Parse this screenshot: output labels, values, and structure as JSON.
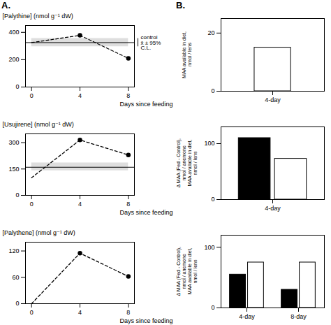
{
  "chart_data": [
    {
      "type": "line",
      "title": "A.",
      "x": [
        0,
        4,
        8
      ],
      "xlim": [
        -0.5,
        8.5
      ],
      "xticks": [
        0,
        4,
        8
      ],
      "xlabel": "Days since feeding",
      "ylabel": "[Palythine] (nmol g⁻¹ dW)",
      "ylim": [
        0,
        450
      ],
      "yticks": [
        0,
        200,
        400
      ],
      "series": [
        {
          "type": "band",
          "color": "#c8c8c8",
          "lower": 295,
          "upper": 355
        },
        {
          "type": "hline",
          "color": "#000000",
          "value": 325
        },
        {
          "type": "line",
          "line_style": "dashed",
          "color": "#000000",
          "values": [
            325,
            378,
            210
          ]
        },
        {
          "type": "scatter",
          "marker": "o",
          "color": "#000000",
          "values": [
            null,
            378,
            210
          ]
        }
      ],
      "annotations": [
        {
          "text": "control\nx̄ ± 95%\nC.L."
        }
      ]
    },
    {
      "type": "line",
      "x": [
        0,
        4,
        8
      ],
      "xlim": [
        -0.5,
        8.5
      ],
      "xticks": [
        0,
        4,
        8
      ],
      "xlabel": "Days since feeding",
      "ylabel": "[Usujirene] (nmol g⁻¹ dW)",
      "ylim": [
        0,
        350
      ],
      "yticks": [
        0,
        150,
        300
      ],
      "series": [
        {
          "type": "band",
          "color": "#c8c8c8",
          "lower": 140,
          "upper": 185
        },
        {
          "type": "hline",
          "color": "#000000",
          "value": 160
        },
        {
          "type": "line",
          "line_style": "dashed",
          "color": "#000000",
          "values": [
            100,
            315,
            230
          ]
        },
        {
          "type": "scatter",
          "marker": "o",
          "color": "#000000",
          "values": [
            null,
            315,
            230
          ]
        }
      ]
    },
    {
      "type": "line",
      "x": [
        0,
        4,
        8
      ],
      "xlim": [
        -0.5,
        8.5
      ],
      "xticks": [
        0,
        4,
        8
      ],
      "xlabel": "Days since feeding",
      "ylabel": "[Palythene] (nmol g⁻¹ dW)",
      "ylim": [
        0,
        140
      ],
      "yticks": [
        0,
        60,
        120
      ],
      "series": [
        {
          "type": "line",
          "line_style": "dashed",
          "color": "#000000",
          "values": [
            0,
            115,
            62
          ]
        },
        {
          "type": "scatter",
          "marker": "o",
          "color": "#000000",
          "values": [
            null,
            115,
            62
          ]
        }
      ]
    },
    {
      "type": "bar",
      "title": "B.",
      "categories": [
        "4-day"
      ],
      "ylabel": "MAA available in diet,\nnmol / lens",
      "ylim": [
        0,
        25
      ],
      "yticks": [
        0,
        20
      ],
      "series": [
        {
          "color": "white",
          "values": [
            15
          ]
        }
      ]
    },
    {
      "type": "bar",
      "categories": [
        "4-day"
      ],
      "ylabel": "Δ MAA (Fed - Control),\nnmol / anemone\nMAA available in diet,\nnmol / lens",
      "ylim": [
        0,
        130
      ],
      "yticks": [
        0,
        100
      ],
      "series": [
        {
          "color": "black",
          "values": [
            110
          ]
        },
        {
          "color": "white",
          "values": [
            73
          ]
        }
      ]
    },
    {
      "type": "bar",
      "categories": [
        "4-day",
        "8-day"
      ],
      "ylabel": "Δ MAA (Fed - Control),\nnmol / anemone\nMAA available in diet,\nnmol / lens",
      "ylim": [
        0,
        120
      ],
      "yticks": [
        0,
        100
      ],
      "series": [
        {
          "color": "black",
          "values": [
            55,
            30
          ]
        },
        {
          "color": "white",
          "values": [
            75,
            75
          ]
        }
      ]
    }
  ]
}
